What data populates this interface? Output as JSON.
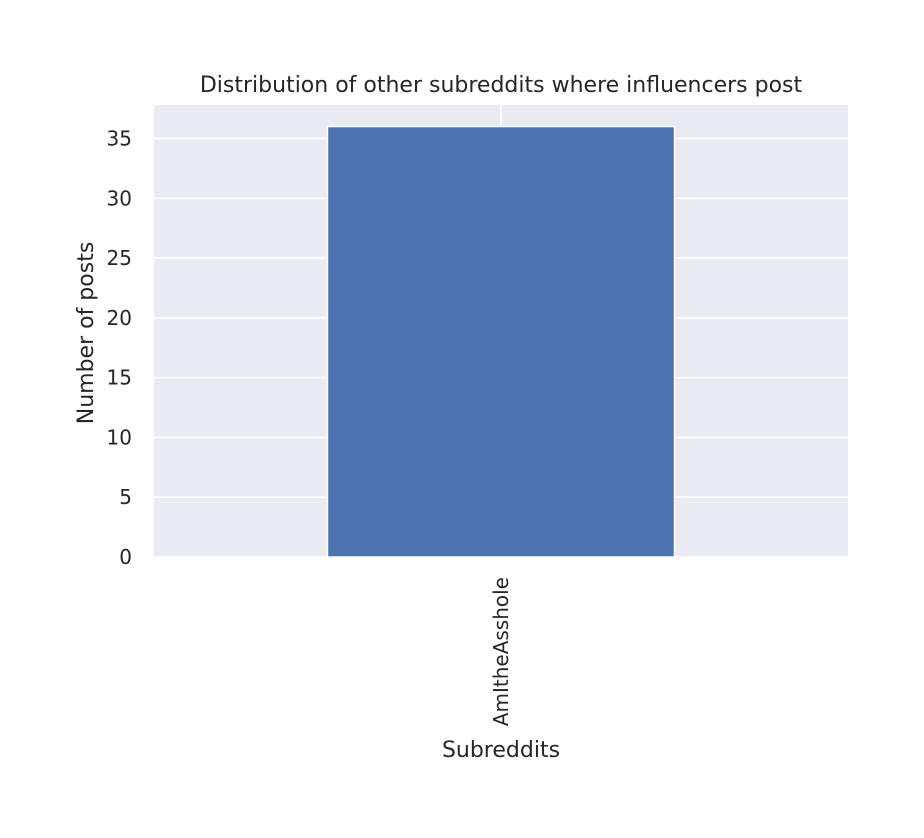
{
  "chart_data": {
    "type": "bar",
    "title": "Distribution of other subreddits where influencers post",
    "xlabel": "Subreddits",
    "ylabel": "Number of posts",
    "categories": [
      "AmItheAsshole"
    ],
    "values": [
      36
    ],
    "ylim": [
      0,
      37.8
    ],
    "yticks": [
      0,
      5,
      10,
      15,
      20,
      25,
      30,
      35
    ],
    "grid": true,
    "colors": {
      "bar": "#4c72b0",
      "plot_background": "#eaeaf2",
      "grid": "#ffffff",
      "text": "#262626"
    }
  }
}
